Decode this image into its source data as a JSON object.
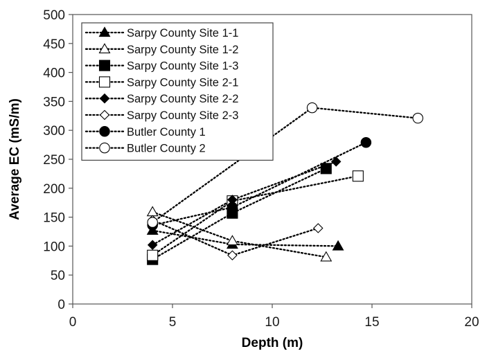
{
  "chart_data": {
    "type": "scatter",
    "title": "",
    "xlabel": "Depth (m)",
    "ylabel": "Average EC (mS/m)",
    "xlim": [
      0,
      20
    ],
    "ylim": [
      0,
      500
    ],
    "xticks": [
      0,
      5,
      10,
      15,
      20
    ],
    "yticks": [
      0,
      50,
      100,
      150,
      200,
      250,
      300,
      350,
      400,
      450,
      500
    ],
    "grid": false,
    "legend_position": "top-left",
    "line_style": "dotted",
    "series": [
      {
        "name": "Sarpy County Site 1-1",
        "marker": "triangle-filled",
        "x": [
          4,
          8,
          13.3
        ],
        "y": [
          127,
          103,
          100
        ]
      },
      {
        "name": "Sarpy County Site 1-2",
        "marker": "triangle-open",
        "x": [
          4,
          8,
          12.7
        ],
        "y": [
          159,
          109,
          81
        ]
      },
      {
        "name": "Sarpy County Site 1-3",
        "marker": "square-filled",
        "x": [
          4,
          8,
          12.7
        ],
        "y": [
          77,
          157,
          234
        ]
      },
      {
        "name": "Sarpy County Site 2-1",
        "marker": "square-open",
        "x": [
          4,
          8,
          14.3
        ],
        "y": [
          84,
          178,
          221
        ]
      },
      {
        "name": "Sarpy County Site 2-2",
        "marker": "diamond-filled",
        "x": [
          4,
          8,
          13.2
        ],
        "y": [
          102,
          180,
          246
        ]
      },
      {
        "name": "Sarpy County Site 2-3",
        "marker": "diamond-open",
        "x": [
          4,
          8,
          12.3
        ],
        "y": [
          145,
          84,
          131
        ]
      },
      {
        "name": "Butler County 1",
        "marker": "circle-filled",
        "x": [
          4,
          8,
          14.7
        ],
        "y": [
          136,
          167,
          279
        ]
      },
      {
        "name": "Butler County 2",
        "marker": "circle-open",
        "x": [
          4,
          12,
          17.3
        ],
        "y": [
          141,
          339,
          321
        ]
      }
    ]
  }
}
